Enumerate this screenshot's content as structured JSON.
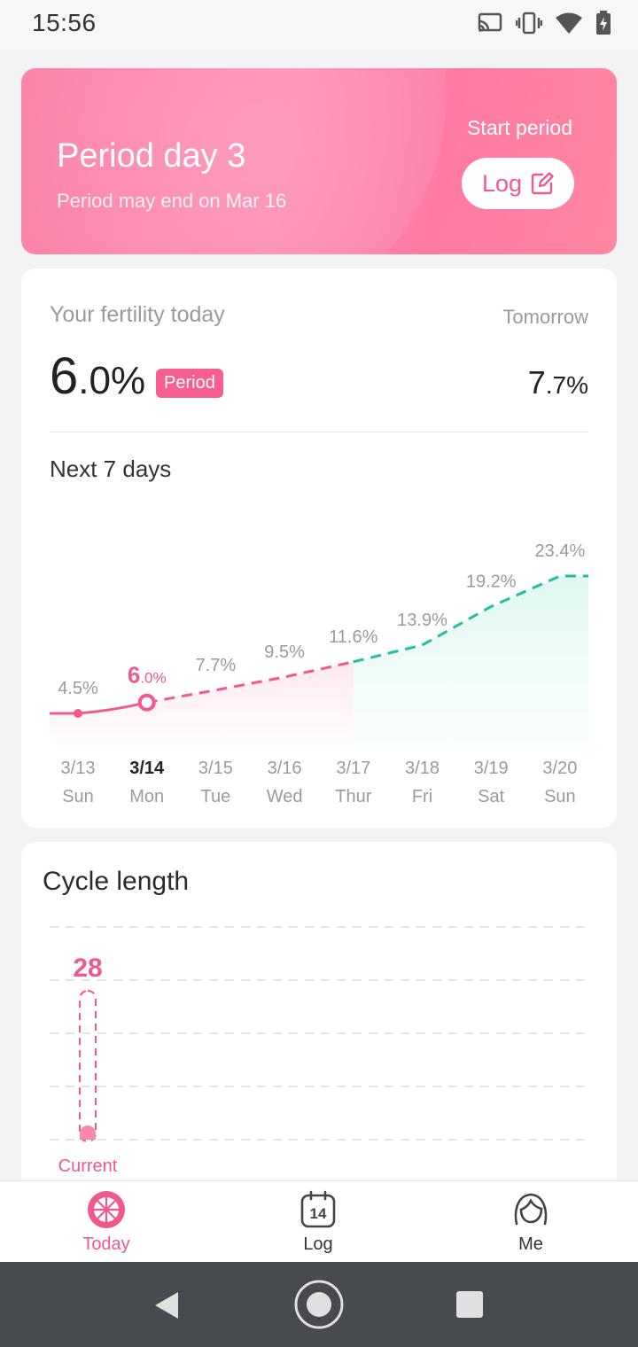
{
  "status_bar": {
    "time": "15:56",
    "icons": [
      "cast-icon",
      "vibrate-icon",
      "wifi-icon",
      "battery-icon"
    ]
  },
  "hero": {
    "title": "Period day 3",
    "subtitle": "Period may end on Mar 16",
    "start_label": "Start period",
    "log_button": "Log",
    "log_icon": "edit-icon"
  },
  "fertility": {
    "label": "Your fertility today",
    "value_int": "6",
    "value_dec": ".0",
    "unit": "%",
    "badge": "Period",
    "tomorrow_label": "Tomorrow",
    "tomorrow_int": "7",
    "tomorrow_dec": ".7",
    "tomorrow_unit": "%"
  },
  "next7": {
    "title": "Next 7 days",
    "chart_data": {
      "type": "line",
      "categories": [
        "3/13",
        "3/14",
        "3/15",
        "3/16",
        "3/17",
        "3/18",
        "3/19",
        "3/20"
      ],
      "days": [
        "Sun",
        "Mon",
        "Tue",
        "Wed",
        "Thur",
        "Fri",
        "Sat",
        "Sun"
      ],
      "values": [
        4.5,
        6.0,
        7.7,
        9.5,
        11.6,
        13.9,
        19.2,
        23.4
      ],
      "labels": [
        "4.5%",
        "6.0%",
        "7.7%",
        "9.5%",
        "11.6%",
        "13.9%",
        "19.2%",
        "23.4%"
      ],
      "today_index": 1,
      "colors": {
        "period": "#f0588e",
        "fertile": "#1fbfa0",
        "label": "#9a9a9a"
      }
    }
  },
  "cycle": {
    "title": "Cycle length",
    "value": "28",
    "bar_label": "Current"
  },
  "bottom_nav": [
    {
      "label": "Today",
      "icon": "today-icon",
      "active": true
    },
    {
      "label": "Log",
      "icon": "calendar-icon",
      "active": false,
      "icon_text": "14"
    },
    {
      "label": "Me",
      "icon": "profile-icon",
      "active": false
    }
  ],
  "system_nav": [
    "back-icon",
    "home-icon",
    "recents-icon"
  ]
}
